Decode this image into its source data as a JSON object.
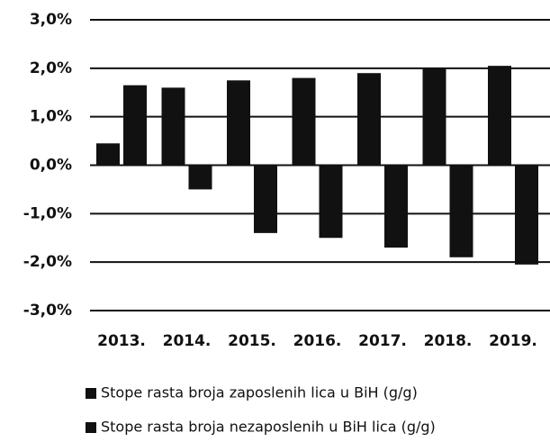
{
  "chart_data": {
    "type": "bar",
    "categories": [
      "2013.",
      "2014.",
      "2015.",
      "2016.",
      "2017.",
      "2018.",
      "2019."
    ],
    "series": [
      {
        "name": "Stope rasta broja zaposlenih lica u BiH (g/g)",
        "color": "#111111",
        "values": [
          0.45,
          1.6,
          1.75,
          1.8,
          1.9,
          2.0,
          2.05
        ]
      },
      {
        "name": "Stope rasta broja nezaposlenih u BiH lica (g/g)",
        "color": "#111111",
        "values": [
          1.65,
          -0.5,
          -1.4,
          -1.5,
          -1.7,
          -1.9,
          -2.05
        ]
      }
    ],
    "ylim": [
      -3,
      3
    ],
    "yticks": [
      {
        "value": -3,
        "label": "-3,0%"
      },
      {
        "value": -2,
        "label": "-2,0%"
      },
      {
        "value": -1,
        "label": "-1,0%"
      },
      {
        "value": 0,
        "label": "0,0%"
      },
      {
        "value": 1,
        "label": "1,0%"
      },
      {
        "value": 2,
        "label": "2,0%"
      },
      {
        "value": 3,
        "label": "3,0%"
      }
    ],
    "grid": true
  }
}
